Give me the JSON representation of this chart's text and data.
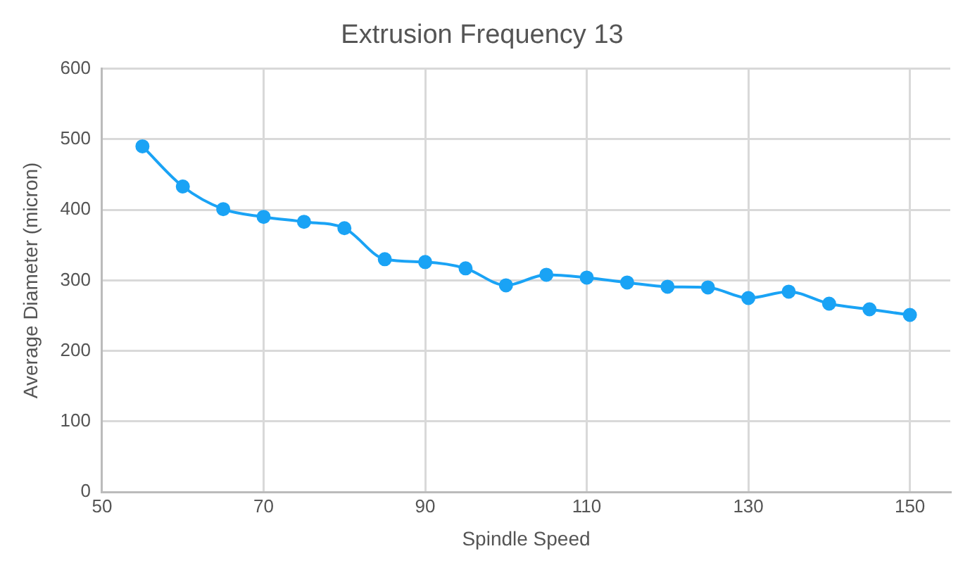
{
  "chart_data": {
    "type": "line",
    "title": "Extrusion Frequency 13",
    "xlabel": "Spindle Speed",
    "ylabel": "Average Diameter (micron)",
    "x": [
      55,
      60,
      65,
      70,
      75,
      80,
      85,
      90,
      95,
      100,
      105,
      110,
      115,
      120,
      125,
      130,
      135,
      140,
      145,
      150
    ],
    "series": [
      {
        "color": "#1aa3f5",
        "values": [
          490,
          433,
          401,
          390,
          383,
          374,
          330,
          326,
          317,
          293,
          308,
          304,
          297,
          291,
          290,
          275,
          284,
          267,
          259,
          251
        ]
      }
    ],
    "xlim": [
      50,
      155
    ],
    "xticks": [
      50,
      70,
      90,
      110,
      130,
      150
    ],
    "ylim": [
      0,
      600
    ],
    "yticks": [
      0,
      100,
      200,
      300,
      400,
      500,
      600
    ],
    "grid": true,
    "legend": false,
    "marker": "circle",
    "line_style": "solid"
  }
}
